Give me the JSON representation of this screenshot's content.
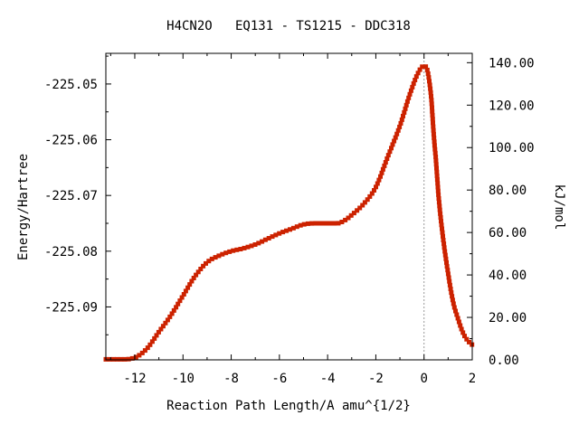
{
  "chart_data": {
    "type": "line",
    "title": "H4CN2O   EQ131 - TS1215 - DDC318",
    "xlabel": "Reaction Path Length/A amu^{1/2}",
    "ylabel": "Energy/Hartree",
    "y2label": "kJ/mol",
    "xlim": [
      -13.2,
      2.0
    ],
    "ylim": [
      -225.0995,
      -225.0445
    ],
    "y2lim": [
      0.0,
      144.4
    ],
    "x_ticks": [
      -12,
      -10,
      -8,
      -6,
      -4,
      -2,
      0,
      2
    ],
    "x_tick_labels": [
      "-12",
      "-10",
      "-8",
      "-6",
      "-4",
      "-2",
      "0",
      "2"
    ],
    "y_ticks": [
      -225.05,
      -225.06,
      -225.07,
      -225.08,
      -225.09
    ],
    "y_tick_labels": [
      "-225.05",
      "-225.06",
      "-225.07",
      "-225.08",
      "-225.09"
    ],
    "y2_ticks": [
      0,
      20,
      40,
      60,
      80,
      100,
      120,
      140
    ],
    "y2_tick_labels": [
      "0.00",
      "20.00",
      "40.00",
      "60.00",
      "80.00",
      "100.00",
      "120.00",
      "140.00"
    ],
    "ts_marker_x": 0.0,
    "grid": false,
    "legend": "none",
    "colors": {
      "line": "#00b000",
      "marker": "#cc2200",
      "ts_line": "#999999"
    },
    "series": [
      {
        "x": [
          -13.2,
          -12.5,
          -12.0,
          -11.5,
          -11.0,
          -10.5,
          -10.0,
          -9.5,
          -9.0,
          -8.5,
          -8.0,
          -7.5,
          -7.0,
          -6.5,
          -6.0,
          -5.5,
          -5.0,
          -4.5,
          -4.0,
          -3.6,
          -3.3,
          -3.0,
          -2.5,
          -2.0,
          -1.5,
          -1.0,
          -0.6,
          -0.3,
          -0.1,
          0.0,
          0.1,
          0.2,
          0.3,
          0.4,
          0.5,
          0.6,
          0.8,
          1.0,
          1.2,
          1.4,
          1.6,
          1.8,
          2.0
        ],
        "y": [
          -225.0994,
          -225.0994,
          -225.0991,
          -225.0975,
          -225.0945,
          -225.0915,
          -225.088,
          -225.0845,
          -225.082,
          -225.0808,
          -225.08,
          -225.0795,
          -225.0788,
          -225.0778,
          -225.0768,
          -225.076,
          -225.0752,
          -225.075,
          -225.075,
          -225.075,
          -225.0745,
          -225.0735,
          -225.0715,
          -225.0685,
          -225.063,
          -225.0575,
          -225.052,
          -225.0485,
          -225.047,
          -225.0468,
          -225.047,
          -225.049,
          -225.0525,
          -225.059,
          -225.064,
          -225.07,
          -225.078,
          -225.084,
          -225.089,
          -225.092,
          -225.0945,
          -225.096,
          -225.0968
        ]
      }
    ]
  }
}
